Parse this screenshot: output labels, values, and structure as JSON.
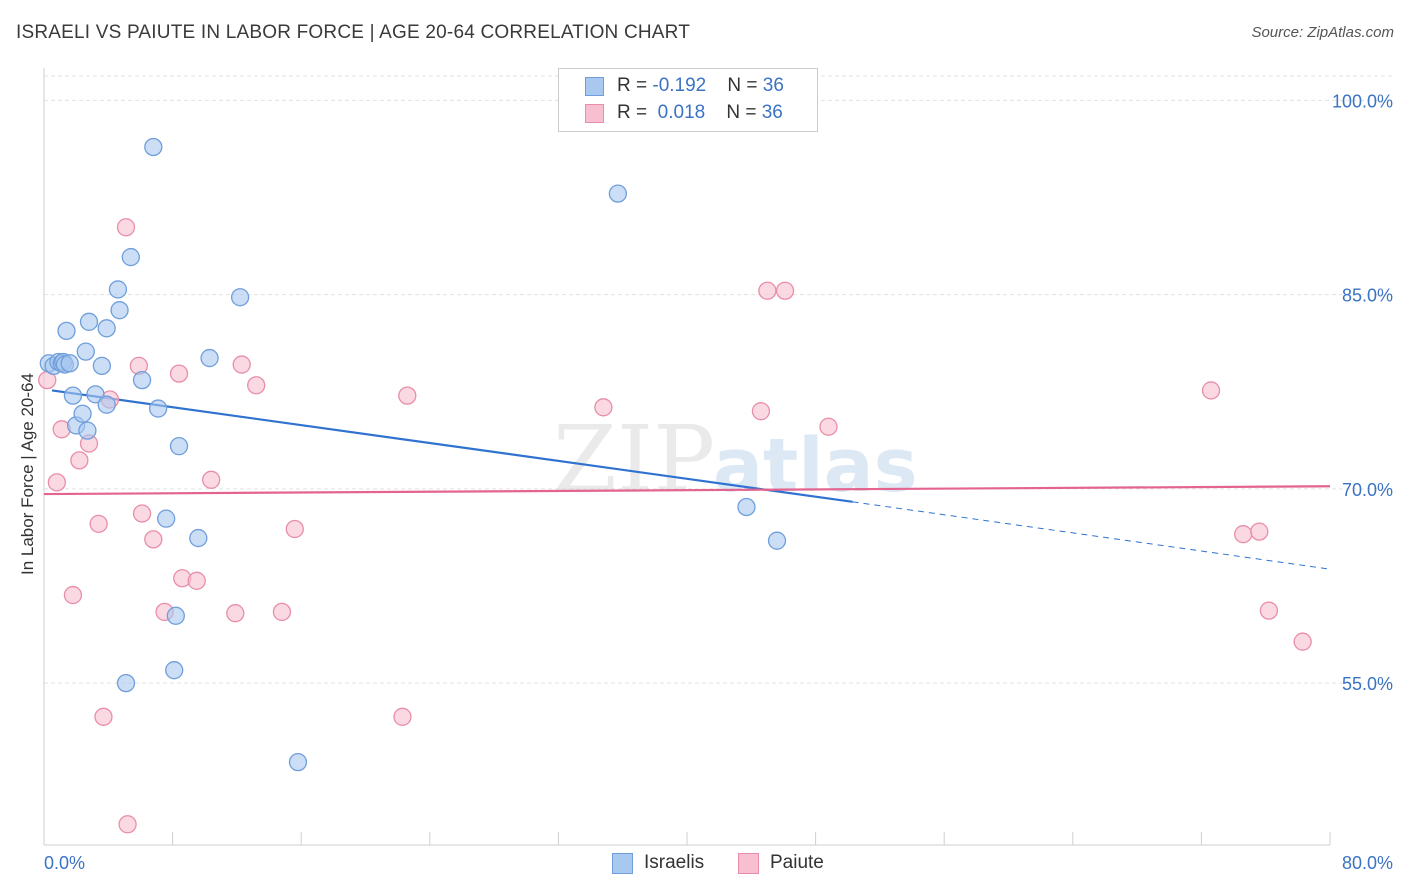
{
  "title": "ISRAELI VS PAIUTE IN LABOR FORCE | AGE 20-64 CORRELATION CHART",
  "source": "Source: ZipAtlas.com",
  "watermark": {
    "part1": "ZIP",
    "part2": "atlas"
  },
  "colors": {
    "israelis_fill": "#a9c8f0",
    "israelis_stroke": "#6f9fdb",
    "israelis_line": "#2f72cf",
    "paiute_fill": "#f7bfd0",
    "paiute_stroke": "#e88ea9",
    "paiute_line": "#e3648e",
    "tick_label": "#3b73c4"
  },
  "legend_top": {
    "rows": [
      {
        "r_label": "R = ",
        "r_value": "-0.192",
        "n_label": "N = ",
        "n_value": "36"
      },
      {
        "r_label": "R = ",
        "r_value": " 0.018",
        "n_label": "N = ",
        "n_value": "36"
      }
    ]
  },
  "legend_bottom": [
    "Israelis",
    "Paiute"
  ],
  "chart_data": {
    "type": "scatter",
    "xlabel": "",
    "ylabel": "In Labor Force | Age 20-64",
    "xlim": [
      0,
      80
    ],
    "ylim": [
      42.5,
      102.5
    ],
    "x_tick_labels": [
      "0.0%",
      "80.0%"
    ],
    "y_ticks": [
      55,
      70,
      85,
      100
    ],
    "y_tick_labels": [
      "55.0%",
      "70.0%",
      "85.0%",
      "100.0%"
    ],
    "grid": true,
    "series": [
      {
        "name": "Israelis",
        "r": -0.192,
        "n": 36,
        "trend": {
          "x0": 0.5,
          "y0": 77.6,
          "x1": 50.3,
          "y1": 69.0,
          "x_dash_end": 80.0,
          "y_dash_end": 63.8
        },
        "points": [
          [
            0.3,
            79.7
          ],
          [
            0.6,
            79.5
          ],
          [
            0.9,
            79.8
          ],
          [
            1.1,
            79.7
          ],
          [
            1.2,
            79.8
          ],
          [
            1.3,
            79.6
          ],
          [
            1.6,
            79.7
          ],
          [
            1.4,
            82.2
          ],
          [
            1.8,
            77.2
          ],
          [
            2.0,
            74.9
          ],
          [
            2.4,
            75.8
          ],
          [
            2.7,
            74.5
          ],
          [
            2.8,
            82.9
          ],
          [
            2.6,
            80.6
          ],
          [
            3.2,
            77.3
          ],
          [
            3.6,
            79.5
          ],
          [
            3.9,
            82.4
          ],
          [
            3.9,
            76.5
          ],
          [
            4.6,
            85.4
          ],
          [
            4.7,
            83.8
          ],
          [
            5.4,
            87.9
          ],
          [
            6.1,
            78.4
          ],
          [
            6.8,
            96.4
          ],
          [
            7.1,
            76.2
          ],
          [
            7.6,
            67.7
          ],
          [
            8.1,
            56.0
          ],
          [
            8.2,
            60.2
          ],
          [
            8.4,
            73.3
          ],
          [
            9.6,
            66.2
          ],
          [
            10.3,
            80.1
          ],
          [
            12.2,
            84.8
          ],
          [
            15.8,
            48.9
          ],
          [
            5.1,
            55.0
          ],
          [
            35.7,
            92.8
          ],
          [
            43.7,
            68.6
          ],
          [
            45.6,
            66.0
          ]
        ]
      },
      {
        "name": "Paiute",
        "r": 0.018,
        "n": 36,
        "trend": {
          "x0": 0.0,
          "y0": 69.6,
          "x1": 80.0,
          "y1": 70.2
        },
        "points": [
          [
            0.2,
            78.4
          ],
          [
            0.8,
            70.5
          ],
          [
            1.1,
            74.6
          ],
          [
            1.8,
            61.8
          ],
          [
            2.2,
            72.2
          ],
          [
            2.8,
            73.5
          ],
          [
            3.4,
            67.3
          ],
          [
            3.7,
            52.4
          ],
          [
            4.1,
            76.9
          ],
          [
            5.1,
            90.2
          ],
          [
            5.2,
            44.1
          ],
          [
            5.9,
            79.5
          ],
          [
            6.1,
            68.1
          ],
          [
            6.8,
            66.1
          ],
          [
            7.5,
            60.5
          ],
          [
            8.4,
            78.9
          ],
          [
            8.6,
            63.1
          ],
          [
            9.5,
            62.9
          ],
          [
            10.4,
            70.7
          ],
          [
            11.9,
            60.4
          ],
          [
            12.3,
            79.6
          ],
          [
            13.2,
            78.0
          ],
          [
            14.8,
            60.5
          ],
          [
            15.6,
            66.9
          ],
          [
            22.6,
            77.2
          ],
          [
            22.3,
            52.4
          ],
          [
            34.8,
            76.3
          ],
          [
            44.6,
            76.0
          ],
          [
            45.0,
            85.3
          ],
          [
            46.1,
            85.3
          ],
          [
            48.8,
            74.8
          ],
          [
            72.6,
            77.6
          ],
          [
            74.6,
            66.5
          ],
          [
            75.6,
            66.7
          ],
          [
            76.2,
            60.6
          ],
          [
            78.3,
            58.2
          ]
        ]
      }
    ]
  }
}
